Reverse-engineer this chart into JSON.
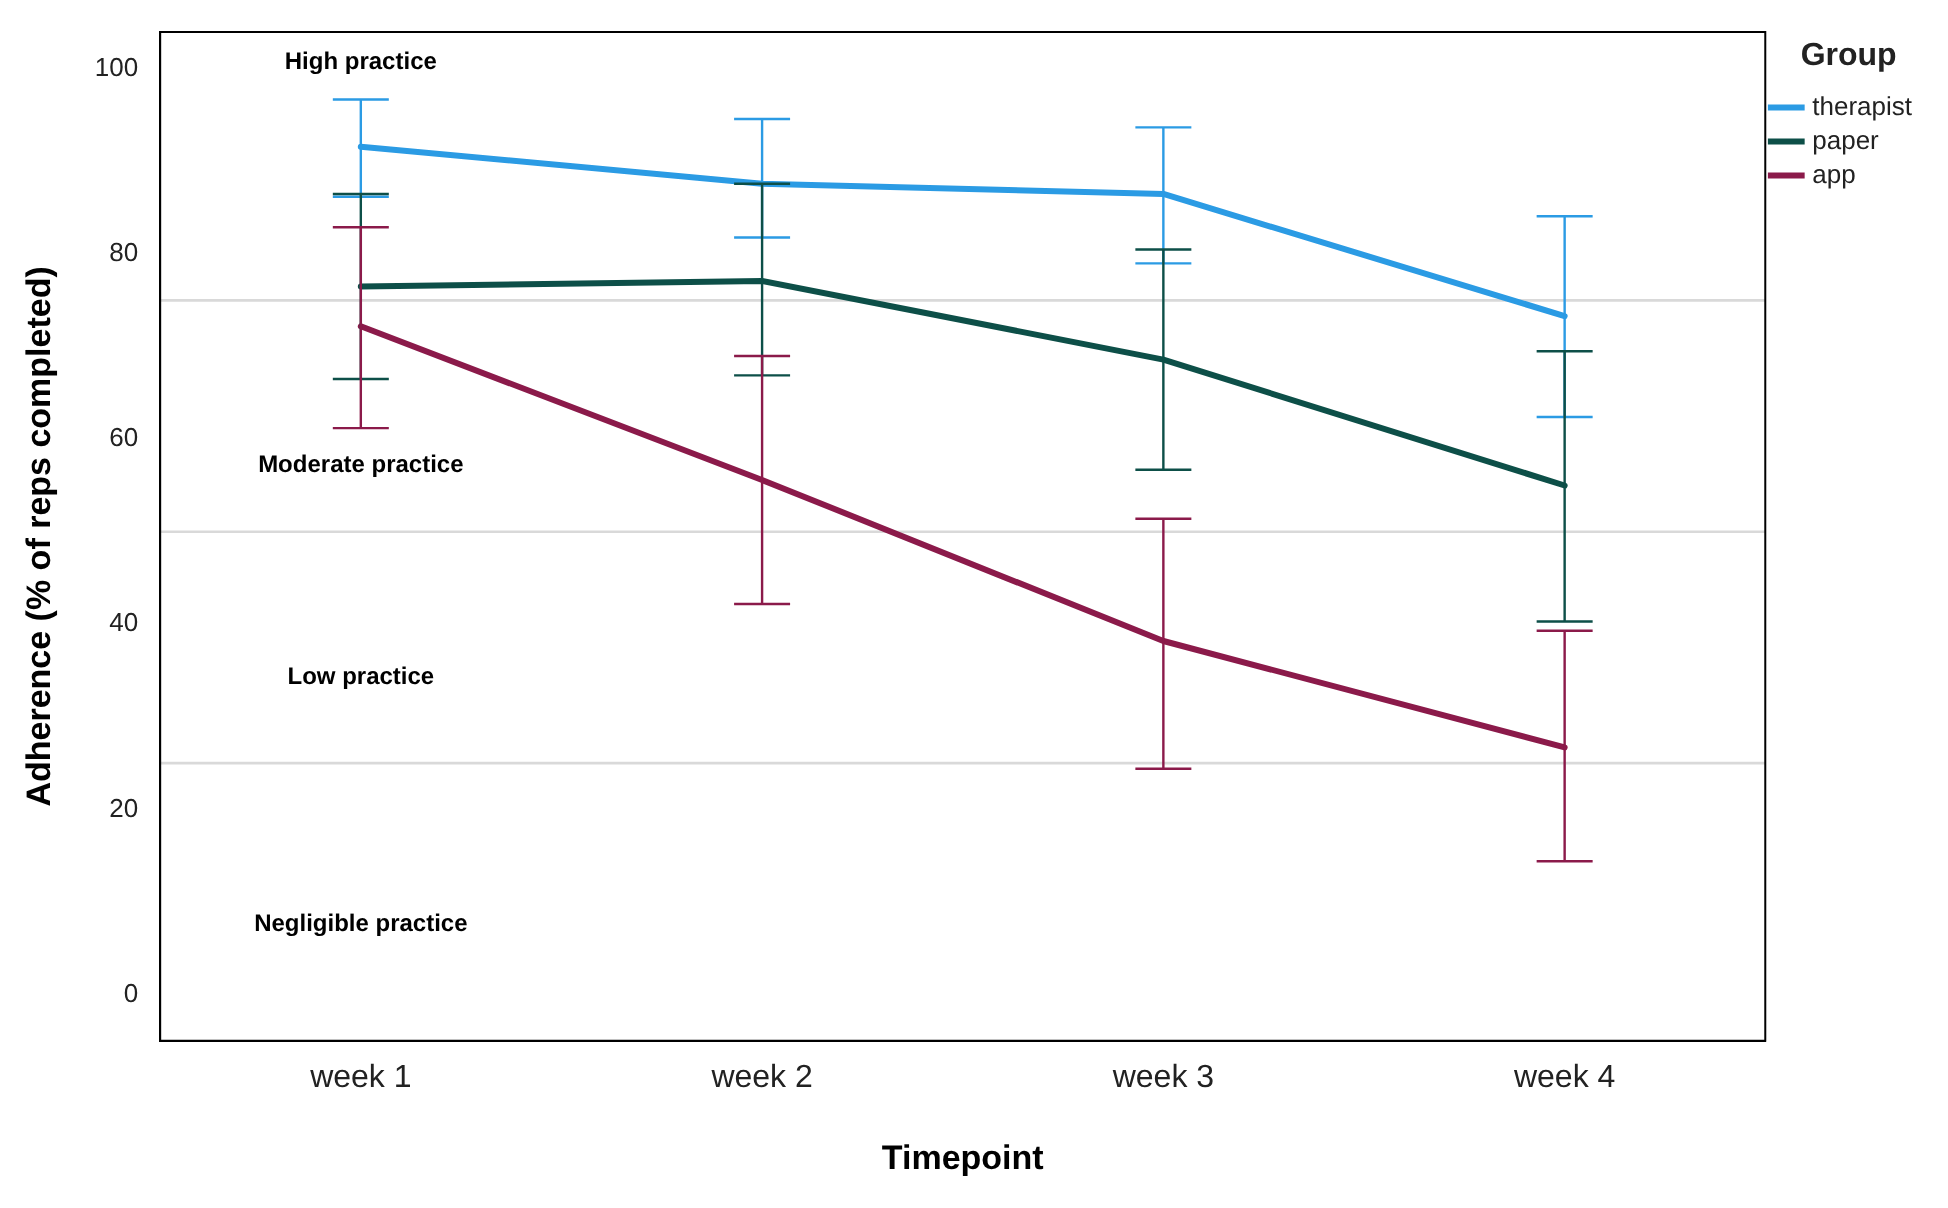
{
  "chart_data": {
    "type": "line",
    "xlabel": "Timepoint",
    "ylabel": "Adherence (% of reps completed)",
    "legend_title": "Group",
    "legend": "top right",
    "grid": false,
    "marker": "none",
    "line_style": "solid",
    "categories": [
      "week 1",
      "week 2",
      "week 3",
      "week 4"
    ],
    "ylim": [
      -5,
      104
    ],
    "yticks": [
      0,
      20,
      40,
      60,
      80,
      100
    ],
    "series": [
      {
        "name": "therapist",
        "color": "#2b9be4",
        "values": [
          91.6,
          87.6,
          86.5,
          73.3
        ],
        "errors": [
          [
            86.2,
            96.7
          ],
          [
            81.8,
            94.6
          ],
          [
            79,
            93.7
          ],
          [
            62.4,
            84.1
          ]
        ]
      },
      {
        "name": "paper",
        "color": "#0d4f48",
        "values": [
          76.5,
          77.1,
          68.6,
          55
        ],
        "errors": [
          [
            66.5,
            86.5
          ],
          [
            66.9,
            87.6
          ],
          [
            56.7,
            80.5
          ],
          [
            40.3,
            69.5
          ]
        ]
      },
      {
        "name": "app",
        "color": "#8b1a4a",
        "values": [
          72.2,
          55.6,
          38.2,
          26.7
        ],
        "errors": [
          [
            61.2,
            82.9
          ],
          [
            42.2,
            69
          ],
          [
            24.4,
            51.4
          ],
          [
            14.4,
            39.3
          ]
        ]
      }
    ],
    "ref_lines": [
      {
        "axis": "y",
        "value": 75,
        "color": "#d9d9d9"
      },
      {
        "axis": "y",
        "value": 50,
        "color": "#d9d9d9"
      },
      {
        "axis": "y",
        "value": 25,
        "color": "#d9d9d9"
      }
    ],
    "annotations": [
      "High practice",
      "Moderate practice",
      "Low practice",
      "Negligible practice"
    ]
  }
}
